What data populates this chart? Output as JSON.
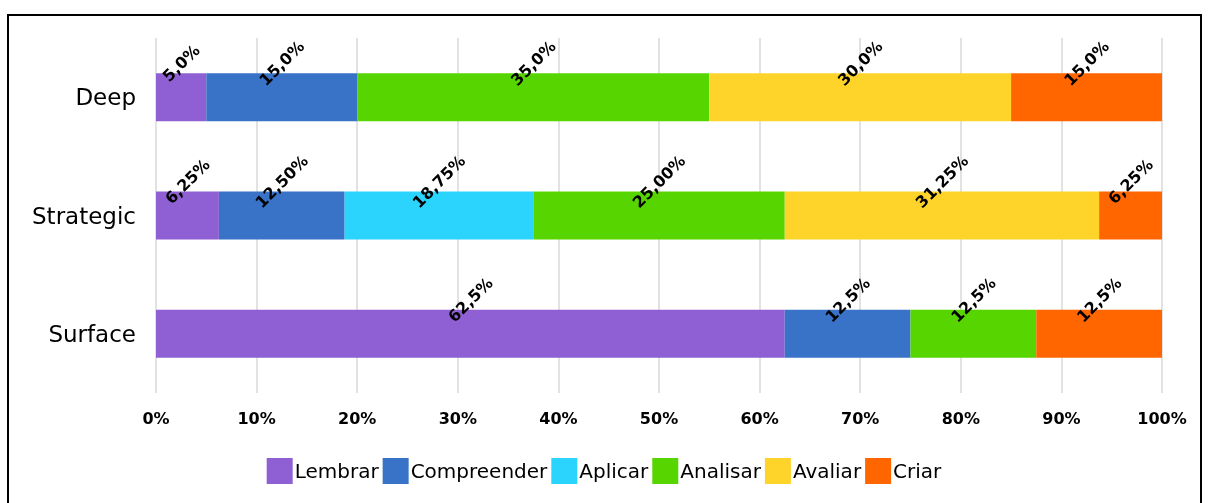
{
  "chart_data": {
    "type": "bar",
    "orientation": "horizontal",
    "stacked": true,
    "categories": [
      "Deep",
      "Strategic",
      "Surface"
    ],
    "series": [
      {
        "name": "Lembrar",
        "color": "#8e60d3",
        "values": [
          5,
          6.25,
          62.5
        ],
        "value_labels": [
          "5,0%",
          "6,25%",
          "62,5%"
        ]
      },
      {
        "name": "Compreender",
        "color": "#3873c8",
        "values": [
          15,
          12.5,
          12.5
        ],
        "value_labels": [
          "15,0%",
          "12,50%",
          "12,5%"
        ]
      },
      {
        "name": "Aplicar",
        "color": "#2ad4fd",
        "values": [
          null,
          18.75,
          null
        ],
        "value_labels": [
          null,
          "18,75%",
          null
        ]
      },
      {
        "name": "Analisar",
        "color": "#57d500",
        "values": [
          35,
          25,
          12.5
        ],
        "value_labels": [
          "35,0%",
          "25,00%",
          "12,5%"
        ]
      },
      {
        "name": "Avaliar",
        "color": "#fed42b",
        "values": [
          30,
          31.25,
          null
        ],
        "value_labels": [
          "30,0%",
          "31,25%",
          null
        ]
      },
      {
        "name": "Criar",
        "color": "#ff6600",
        "values": [
          15,
          6.25,
          12.5
        ],
        "value_labels": [
          "15,0%",
          "6,25%",
          "12,5%"
        ]
      }
    ],
    "xlim": [
      0,
      100
    ],
    "xticks": [
      {
        "value": 0,
        "label": "0%"
      },
      {
        "value": 10,
        "label": "10%"
      },
      {
        "value": 20,
        "label": "20%"
      },
      {
        "value": 30,
        "label": "30%"
      },
      {
        "value": 40,
        "label": "40%"
      },
      {
        "value": 50,
        "label": "50%"
      },
      {
        "value": 60,
        "label": "60%"
      },
      {
        "value": 70,
        "label": "70%"
      },
      {
        "value": 80,
        "label": "80%"
      },
      {
        "value": 90,
        "label": "90%"
      },
      {
        "value": 100,
        "label": "100%"
      }
    ],
    "grid": "x",
    "legend": "bottom"
  }
}
